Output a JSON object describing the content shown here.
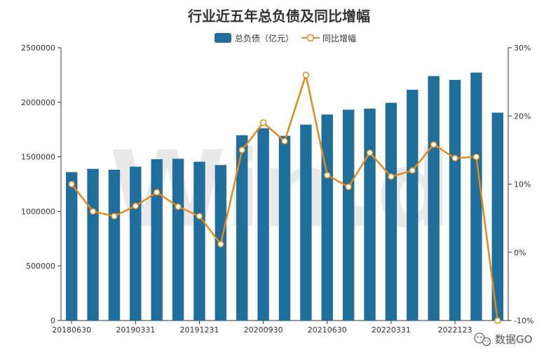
{
  "chart_data": {
    "type": "bar",
    "title": "行业近五年总负债及同比增幅",
    "legend": {
      "placement": "top-center"
    },
    "series": [
      {
        "name": "总负债（亿元）",
        "type": "bar",
        "axis": "left",
        "color": "#1f6e9c",
        "values": [
          1360000,
          1390000,
          1382000,
          1410000,
          1478000,
          1482000,
          1455000,
          1425000,
          1698000,
          1762000,
          1692000,
          1795000,
          1888000,
          1932000,
          1942000,
          1995000,
          2115000,
          2240000,
          2205000,
          2272000,
          1905000
        ]
      },
      {
        "name": "同比增幅",
        "type": "line",
        "axis": "right",
        "color": "#e08a1e",
        "unit": "%",
        "values": [
          10.0,
          6.0,
          5.3,
          6.8,
          8.8,
          6.7,
          5.3,
          1.2,
          15.0,
          19.0,
          16.3,
          26.0,
          11.3,
          9.6,
          14.6,
          11.1,
          12.0,
          15.8,
          13.8,
          14.0,
          -10.0
        ]
      }
    ],
    "x_tick_labels": [
      "20180630",
      "20190331",
      "20191231",
      "20200930",
      "20210630",
      "20220331",
      "2022123"
    ],
    "y_left": {
      "ticks": [
        "0",
        "500000",
        "1000000",
        "1500000",
        "2000000",
        "2500000"
      ],
      "ylim": [
        0,
        2500000
      ]
    },
    "y_right": {
      "ticks": [
        "-10%",
        "0%",
        "10%",
        "20%",
        "30%"
      ],
      "ylim": [
        -10,
        30
      ]
    },
    "grid": false
  },
  "watermark": {
    "text": "Win.d"
  },
  "branding": {
    "text": "数据GO",
    "icon": "wechat-icon"
  }
}
